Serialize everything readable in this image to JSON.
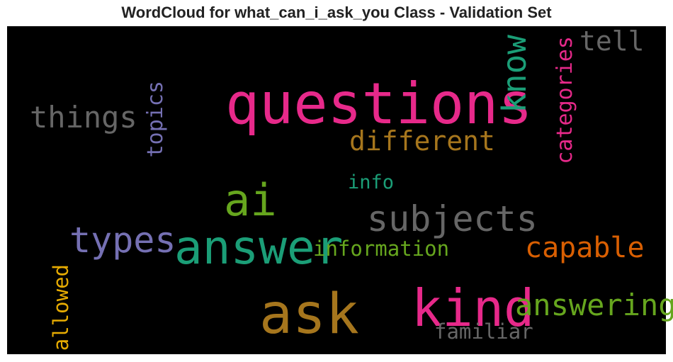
{
  "chart_data": {
    "type": "wordcloud",
    "title": "WordCloud for what_can_i_ask_you Class - Validation Set",
    "background": "#000000",
    "words": [
      {
        "text": "questions",
        "weight": 1.0,
        "color": "#e7298a",
        "orientation": "horizontal"
      },
      {
        "text": "ask",
        "weight": 0.98,
        "color": "#a6761d",
        "orientation": "horizontal"
      },
      {
        "text": "kind",
        "weight": 0.9,
        "color": "#e7298a",
        "orientation": "horizontal"
      },
      {
        "text": "answer",
        "weight": 0.82,
        "color": "#1b9e77",
        "orientation": "horizontal"
      },
      {
        "text": "ai",
        "weight": 0.78,
        "color": "#66a61e",
        "orientation": "horizontal"
      },
      {
        "text": "subjects",
        "weight": 0.62,
        "color": "#666666",
        "orientation": "horizontal"
      },
      {
        "text": "types",
        "weight": 0.62,
        "color": "#7570b3",
        "orientation": "horizontal"
      },
      {
        "text": "know",
        "weight": 0.58,
        "color": "#1b9e77",
        "orientation": "vertical"
      },
      {
        "text": "things",
        "weight": 0.52,
        "color": "#666666",
        "orientation": "horizontal"
      },
      {
        "text": "answering",
        "weight": 0.52,
        "color": "#66a61e",
        "orientation": "horizontal"
      },
      {
        "text": "capable",
        "weight": 0.5,
        "color": "#d95f02",
        "orientation": "horizontal"
      },
      {
        "text": "different",
        "weight": 0.48,
        "color": "#a6761d",
        "orientation": "horizontal"
      },
      {
        "text": "tell",
        "weight": 0.48,
        "color": "#666666",
        "orientation": "horizontal"
      },
      {
        "text": "categories",
        "weight": 0.38,
        "color": "#e7298a",
        "orientation": "vertical"
      },
      {
        "text": "topics",
        "weight": 0.38,
        "color": "#7570b3",
        "orientation": "vertical"
      },
      {
        "text": "information",
        "weight": 0.36,
        "color": "#66a61e",
        "orientation": "horizontal"
      },
      {
        "text": "allowed",
        "weight": 0.36,
        "color": "#e6ab02",
        "orientation": "vertical"
      },
      {
        "text": "familiar",
        "weight": 0.36,
        "color": "#666666",
        "orientation": "horizontal"
      },
      {
        "text": "info",
        "weight": 0.34,
        "color": "#1b9e77",
        "orientation": "horizontal"
      }
    ]
  }
}
